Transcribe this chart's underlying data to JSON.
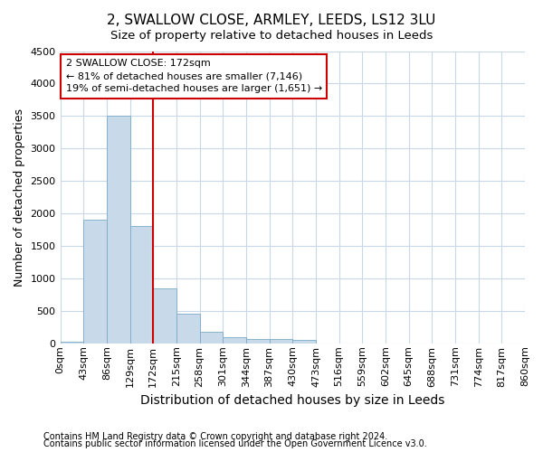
{
  "title": "2, SWALLOW CLOSE, ARMLEY, LEEDS, LS12 3LU",
  "subtitle": "Size of property relative to detached houses in Leeds",
  "xlabel": "Distribution of detached houses by size in Leeds",
  "ylabel": "Number of detached properties",
  "bin_edges": [
    0,
    43,
    86,
    129,
    172,
    215,
    258,
    301,
    344,
    387,
    430,
    473,
    516,
    559,
    602,
    645,
    688,
    731,
    774,
    817,
    860
  ],
  "bar_heights": [
    30,
    1900,
    3500,
    1800,
    850,
    450,
    175,
    100,
    70,
    60,
    50,
    0,
    0,
    0,
    0,
    0,
    0,
    0,
    0,
    0
  ],
  "bar_color": "#c8daea",
  "bar_edge_color": "#7aaac8",
  "vline_x": 172,
  "vline_color": "#cc0000",
  "ylim": [
    0,
    4500
  ],
  "yticks": [
    0,
    500,
    1000,
    1500,
    2000,
    2500,
    3000,
    3500,
    4000,
    4500
  ],
  "annotation_text": "2 SWALLOW CLOSE: 172sqm\n← 81% of detached houses are smaller (7,146)\n19% of semi-detached houses are larger (1,651) →",
  "annotation_box_facecolor": "#ffffff",
  "annotation_box_edgecolor": "#cc0000",
  "footer_line1": "Contains HM Land Registry data © Crown copyright and database right 2024.",
  "footer_line2": "Contains public sector information licensed under the Open Government Licence v3.0.",
  "background_color": "#ffffff",
  "plot_bg_color": "#ffffff",
  "grid_color": "#c8d8e8",
  "title_fontsize": 11,
  "subtitle_fontsize": 9.5,
  "xlabel_fontsize": 10,
  "ylabel_fontsize": 9,
  "tick_label_fontsize": 8,
  "annotation_fontsize": 8,
  "footer_fontsize": 7
}
